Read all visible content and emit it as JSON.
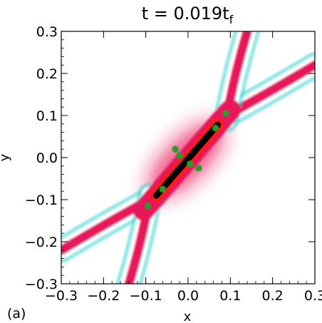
{
  "chart_data": {
    "type": "heatmap",
    "title": "t = 0.019t",
    "title_subscript": "f",
    "xlabel": "x",
    "ylabel": "y",
    "panel_label": "(a)",
    "xlim": [
      -0.3,
      0.3
    ],
    "ylim": [
      -0.3,
      0.3
    ],
    "x_ticks": [
      -0.3,
      -0.2,
      -0.1,
      0.0,
      0.1,
      0.2,
      0.3
    ],
    "x_tick_labels": [
      "−0.3",
      "−0.2",
      "−0.1",
      "0.0",
      "0.1",
      "0.2",
      "0.3"
    ],
    "y_ticks": [
      -0.3,
      -0.2,
      -0.1,
      0.0,
      0.1,
      0.2,
      0.3
    ],
    "y_tick_labels": [
      "−0.3",
      "−0.2",
      "−0.1",
      "0.0",
      "0.1",
      "0.2",
      "0.3"
    ],
    "grid": false,
    "colors": {
      "positive": "#e8195c",
      "negative": "#36d6d6",
      "core": "#000000",
      "core_outline": "#ff1a1a",
      "markers": "#2e9a2e",
      "background": "#ffffff"
    },
    "wave_arms": [
      {
        "name": "arm-upper-right",
        "points": [
          [
            0.11,
            0.11
          ],
          [
            0.2,
            0.16
          ],
          [
            0.3,
            0.22
          ]
        ]
      },
      {
        "name": "arm-upper-left",
        "points": [
          [
            0.09,
            0.09
          ],
          [
            0.11,
            0.2
          ],
          [
            0.14,
            0.3
          ]
        ]
      },
      {
        "name": "arm-lower-left",
        "points": [
          [
            -0.11,
            -0.11
          ],
          [
            -0.2,
            -0.16
          ],
          [
            -0.3,
            -0.22
          ]
        ]
      },
      {
        "name": "arm-lower-right",
        "points": [
          [
            -0.09,
            -0.09
          ],
          [
            -0.11,
            -0.2
          ],
          [
            -0.14,
            -0.3
          ]
        ]
      }
    ],
    "core_segment": [
      [
        -0.075,
        -0.09
      ],
      [
        0.07,
        0.078
      ]
    ],
    "markers": [
      [
        0.09,
        0.105
      ],
      [
        0.065,
        0.07
      ],
      [
        -0.03,
        0.02
      ],
      [
        -0.02,
        0.005
      ],
      [
        0.005,
        -0.015
      ],
      [
        0.025,
        -0.025
      ],
      [
        -0.06,
        -0.075
      ],
      [
        -0.095,
        -0.115
      ]
    ]
  }
}
